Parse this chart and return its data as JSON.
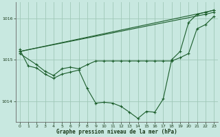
{
  "background_color": "#c8e8e0",
  "grid_color": "#a0c8b8",
  "line_color": "#1a5c2a",
  "xlabel": "Graphe pression niveau de la mer (hPa)",
  "ylim": [
    1013.5,
    1016.4
  ],
  "xlim": [
    -0.5,
    23.5
  ],
  "yticks": [
    1014,
    1015,
    1016
  ],
  "xticks": [
    0,
    1,
    2,
    3,
    4,
    5,
    6,
    7,
    8,
    9,
    10,
    11,
    12,
    13,
    14,
    15,
    16,
    17,
    18,
    19,
    20,
    21,
    22,
    23
  ],
  "line1_x": [
    0,
    1,
    2,
    3,
    4,
    5,
    6,
    7,
    8,
    9,
    10,
    11,
    12,
    13,
    14,
    15,
    16,
    17,
    18,
    19,
    20,
    21,
    22,
    23
  ],
  "line1_y": [
    1015.25,
    1014.85,
    1014.8,
    1014.65,
    1014.55,
    1014.65,
    1014.7,
    1014.75,
    1014.3,
    1013.95,
    1013.97,
    1013.95,
    1013.87,
    1013.73,
    1013.58,
    1013.75,
    1013.73,
    1014.05,
    1015.0,
    1015.2,
    1015.9,
    1016.1,
    1016.15,
    1016.2
  ],
  "line2_x": [
    0,
    2,
    3,
    4,
    5,
    6,
    7,
    8,
    9,
    10,
    11,
    12,
    13,
    14,
    15,
    16,
    17,
    18,
    19,
    20,
    21,
    22,
    23
  ],
  "line2_y": [
    1015.15,
    1014.88,
    1014.72,
    1014.62,
    1014.78,
    1014.82,
    1014.78,
    1014.88,
    1014.97,
    1014.97,
    1014.97,
    1014.97,
    1014.97,
    1014.97,
    1014.97,
    1014.97,
    1014.97,
    1014.97,
    1015.05,
    1015.15,
    1015.75,
    1015.85,
    1016.05
  ],
  "line3_x": [
    0,
    22,
    23
  ],
  "line3_y": [
    1015.2,
    1016.1,
    1016.15
  ],
  "line4_x": [
    0,
    22,
    23
  ],
  "line4_y": [
    1015.2,
    1016.15,
    1016.2
  ]
}
